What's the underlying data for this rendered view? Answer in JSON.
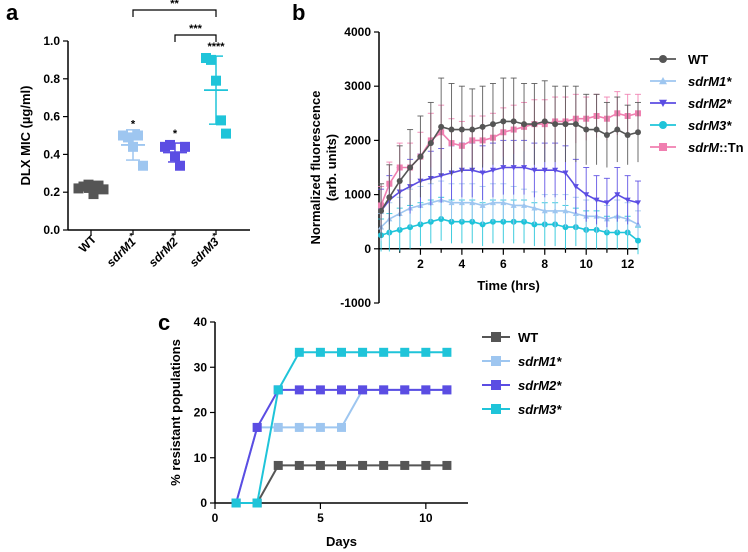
{
  "panels": {
    "a": "a",
    "b": "b",
    "c": "c"
  },
  "colors": {
    "WT": "#555555",
    "sdrM1": "#9ec6f0",
    "sdrM2": "#5b4de3",
    "sdrM3": "#1fc4d9",
    "sdrM_Tn": "#f07fb0"
  },
  "chart_data": [
    {
      "id": "a",
      "type": "scatter",
      "title": "",
      "ylabel": "DLX MIC (µg/ml)",
      "ylim": [
        0,
        1.0
      ],
      "yticks": [
        "0.0",
        "0.2",
        "0.4",
        "0.6",
        "0.8",
        "1.0"
      ],
      "categories": [
        "WT",
        "sdrM1*",
        "sdrM2*",
        "sdrM3*"
      ],
      "category_labels": [
        {
          "base": "WT",
          "sup": ""
        },
        {
          "base": "sdrM1",
          "sup": "*"
        },
        {
          "base": "sdrM2",
          "sup": "*"
        },
        {
          "base": "sdrM3",
          "sup": "*"
        }
      ],
      "points": [
        [
          0.22,
          0.23,
          0.24,
          0.19,
          0.235,
          0.215
        ],
        [
          0.5,
          0.49,
          0.44,
          0.5,
          0.34
        ],
        [
          0.44,
          0.45,
          0.39,
          0.34,
          0.44
        ],
        [
          0.91,
          0.9,
          0.79,
          0.58,
          0.51
        ]
      ],
      "means": [
        0.22,
        0.45,
        0.41,
        0.74
      ],
      "sd": [
        0.02,
        0.08,
        0.05,
        0.18
      ],
      "significance": [
        "",
        "*",
        "*",
        "****"
      ],
      "brackets": [
        {
          "from": 1,
          "to": 3,
          "label": "**"
        },
        {
          "from": 2,
          "to": 3,
          "label": "***"
        }
      ]
    },
    {
      "id": "b",
      "type": "line",
      "xlabel": "Time (hrs)",
      "ylabel": "Normalized fluorescence (arb. units)",
      "ylabel_lines": [
        "Normalized fluorescence",
        "(arb. units)"
      ],
      "xlim": [
        0,
        12.5
      ],
      "ylim": [
        -1000,
        4000
      ],
      "xticks": [
        "2",
        "4",
        "6",
        "8",
        "10",
        "12"
      ],
      "yticks": [
        "-1000",
        "0",
        "1000",
        "2000",
        "3000",
        "4000"
      ],
      "x": [
        0.1,
        0.5,
        1.0,
        1.5,
        2.0,
        2.5,
        3.0,
        3.5,
        4.0,
        4.5,
        5.0,
        5.5,
        6.0,
        6.5,
        7.0,
        7.5,
        8.0,
        8.5,
        9.0,
        9.5,
        10.0,
        10.5,
        11.0,
        11.5,
        12.0,
        12.5
      ],
      "series": [
        {
          "key": "WT",
          "name": "WT",
          "italic": false,
          "marker": "circle",
          "values": [
            700,
            950,
            1250,
            1500,
            1700,
            1950,
            2250,
            2200,
            2200,
            2200,
            2250,
            2300,
            2350,
            2350,
            2300,
            2300,
            2350,
            2300,
            2300,
            2300,
            2200,
            2200,
            2100,
            2200,
            2100,
            2150
          ],
          "err": [
            500,
            600,
            650,
            700,
            750,
            750,
            900,
            850,
            800,
            750,
            750,
            750,
            800,
            800,
            750,
            750,
            750,
            700,
            700,
            700,
            650,
            650,
            600,
            600,
            550,
            550
          ]
        },
        {
          "key": "sdrM1",
          "name": "sdrM1*",
          "italic": true,
          "marker": "triangle-up",
          "values": [
            400,
            550,
            650,
            750,
            800,
            850,
            900,
            850,
            850,
            850,
            800,
            850,
            850,
            800,
            800,
            750,
            700,
            700,
            700,
            650,
            600,
            600,
            550,
            600,
            550,
            450
          ],
          "err": [
            250,
            300,
            300,
            350,
            350,
            350,
            350,
            350,
            350,
            350,
            350,
            350,
            350,
            350,
            300,
            300,
            300,
            300,
            300,
            300,
            300,
            300,
            250,
            300,
            300,
            250
          ]
        },
        {
          "key": "sdrM2",
          "name": "sdrM2*",
          "italic": true,
          "marker": "triangle-down",
          "values": [
            700,
            900,
            1050,
            1150,
            1250,
            1300,
            1350,
            1400,
            1450,
            1450,
            1400,
            1450,
            1500,
            1500,
            1500,
            1450,
            1450,
            1450,
            1400,
            1150,
            1000,
            900,
            850,
            1000,
            900,
            850
          ],
          "err": [
            400,
            450,
            450,
            500,
            500,
            500,
            500,
            500,
            500,
            500,
            500,
            500,
            500,
            500,
            500,
            500,
            500,
            500,
            500,
            500,
            500,
            450,
            450,
            500,
            450,
            400
          ]
        },
        {
          "key": "sdrM3",
          "name": "sdrM3*",
          "italic": true,
          "marker": "circle",
          "values": [
            250,
            300,
            350,
            400,
            450,
            500,
            550,
            500,
            500,
            500,
            450,
            500,
            500,
            500,
            500,
            450,
            450,
            450,
            400,
            400,
            350,
            350,
            300,
            300,
            300,
            150
          ],
          "err": [
            300,
            350,
            400,
            400,
            400,
            400,
            400,
            400,
            400,
            400,
            400,
            400,
            400,
            400,
            400,
            400,
            400,
            400,
            400,
            350,
            350,
            350,
            300,
            300,
            300,
            250
          ]
        },
        {
          "key": "sdrM_Tn",
          "name": "sdrM::Tn",
          "italic": false,
          "italic_prefix": "sdrM",
          "suffix": "::Tn",
          "marker": "square",
          "values": [
            800,
            1200,
            1500,
            1500,
            1700,
            2000,
            2150,
            1950,
            1900,
            2000,
            2000,
            2050,
            2150,
            2200,
            2250,
            2300,
            2300,
            2350,
            2350,
            2400,
            2400,
            2450,
            2400,
            2500,
            2450,
            2500
          ],
          "err": [
            350,
            400,
            450,
            450,
            450,
            500,
            500,
            450,
            450,
            450,
            450,
            450,
            450,
            450,
            450,
            450,
            450,
            450,
            450,
            450,
            400,
            400,
            400,
            400,
            400,
            350
          ]
        }
      ]
    },
    {
      "id": "c",
      "type": "line",
      "xlabel": "Days",
      "ylabel": "% resistant populations",
      "xlim": [
        0,
        12
      ],
      "ylim": [
        0,
        40
      ],
      "xticks": [
        "0",
        "5",
        "10"
      ],
      "yticks": [
        "0",
        "10",
        "20",
        "30",
        "40"
      ],
      "x": [
        1,
        2,
        3,
        4,
        5,
        6,
        7,
        8,
        9,
        10,
        11
      ],
      "series": [
        {
          "key": "WT",
          "name": "WT",
          "italic": false,
          "values": [
            0,
            0,
            8.3,
            8.3,
            8.3,
            8.3,
            8.3,
            8.3,
            8.3,
            8.3,
            8.3
          ]
        },
        {
          "key": "sdrM1",
          "name": "sdrM1*",
          "italic": true,
          "values": [
            0,
            16.7,
            16.7,
            16.7,
            16.7,
            16.7,
            25,
            25,
            25,
            25,
            25
          ]
        },
        {
          "key": "sdrM2",
          "name": "sdrM2*",
          "italic": true,
          "values": [
            0,
            16.7,
            25,
            25,
            25,
            25,
            25,
            25,
            25,
            25,
            25
          ]
        },
        {
          "key": "sdrM3",
          "name": "sdrM3*",
          "italic": true,
          "values": [
            0,
            0,
            25,
            33.3,
            33.3,
            33.3,
            33.3,
            33.3,
            33.3,
            33.3,
            33.3
          ]
        }
      ]
    }
  ]
}
